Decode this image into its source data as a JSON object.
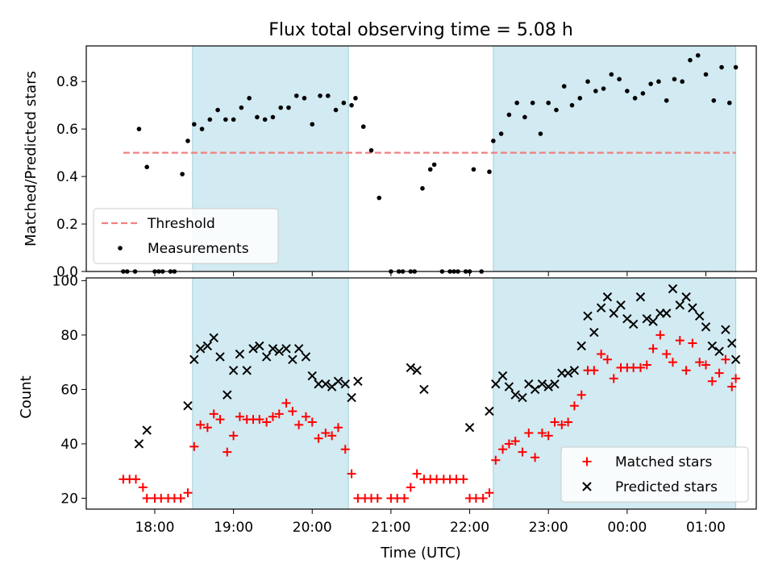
{
  "chart_data": [
    {
      "type": "scatter",
      "title": "Flux total observing time = 5.08 h",
      "xlabel": "",
      "ylabel": "Matched/Predicted stars",
      "xlim": [
        17.13,
        25.64
      ],
      "ylim": [
        0,
        0.95
      ],
      "yticks": [
        0.0,
        0.2,
        0.4,
        0.6,
        0.8
      ],
      "ytick_labels": [
        "0.0",
        "0.2",
        "0.4",
        "0.6",
        "0.8"
      ],
      "shaded_intervals": [
        [
          18.48,
          20.46
        ],
        [
          22.3,
          25.38
        ]
      ],
      "shade_color": "#add8e6",
      "threshold": {
        "name": "Threshold",
        "value": 0.5,
        "x_range": [
          17.6,
          25.38
        ],
        "color": "#f08080"
      },
      "series": [
        {
          "name": "Measurements",
          "color": "#000000",
          "x": [
            17.6,
            17.65,
            17.75,
            17.8,
            17.9,
            18.0,
            18.05,
            18.1,
            18.2,
            18.25,
            18.35,
            18.42,
            18.5,
            18.6,
            18.7,
            18.8,
            18.9,
            19.0,
            19.1,
            19.2,
            19.3,
            19.4,
            19.5,
            19.6,
            19.7,
            19.8,
            19.9,
            20.0,
            20.1,
            20.2,
            20.3,
            20.4,
            20.5,
            20.55,
            20.65,
            20.75,
            20.85,
            21.0,
            21.1,
            21.15,
            21.25,
            21.3,
            21.4,
            21.5,
            21.55,
            21.65,
            21.75,
            21.8,
            21.85,
            21.95,
            22.0,
            22.05,
            22.15,
            22.25,
            22.3,
            22.4,
            22.5,
            22.6,
            22.7,
            22.8,
            22.9,
            23.0,
            23.1,
            23.2,
            23.3,
            23.4,
            23.5,
            23.6,
            23.7,
            23.8,
            23.9,
            24.0,
            24.1,
            24.2,
            24.3,
            24.4,
            24.5,
            24.6,
            24.7,
            24.8,
            24.9,
            25.0,
            25.1,
            25.2,
            25.3,
            25.38
          ],
          "y": [
            0.0,
            0.0,
            0.0,
            0.6,
            0.44,
            0.0,
            0.0,
            0.0,
            0.0,
            0.0,
            0.41,
            0.55,
            0.62,
            0.6,
            0.64,
            0.68,
            0.64,
            0.64,
            0.69,
            0.73,
            0.65,
            0.64,
            0.65,
            0.69,
            0.69,
            0.74,
            0.73,
            0.62,
            0.74,
            0.74,
            0.68,
            0.71,
            0.7,
            0.73,
            0.61,
            0.51,
            0.31,
            0.0,
            0.0,
            0.0,
            0.0,
            0.0,
            0.35,
            0.43,
            0.45,
            0.0,
            0.0,
            0.0,
            0.0,
            0.0,
            0.0,
            0.43,
            0.0,
            0.42,
            0.55,
            0.58,
            0.66,
            0.71,
            0.65,
            0.71,
            0.58,
            0.71,
            0.68,
            0.78,
            0.7,
            0.73,
            0.8,
            0.76,
            0.77,
            0.83,
            0.81,
            0.76,
            0.73,
            0.75,
            0.79,
            0.8,
            0.72,
            0.81,
            0.8,
            0.89,
            0.91,
            0.83,
            0.72,
            0.86,
            0.71,
            0.86
          ]
        }
      ],
      "legend": {
        "position": "lower-left",
        "entries": [
          "Threshold",
          "Measurements"
        ]
      }
    },
    {
      "type": "scatter",
      "title": "",
      "xlabel": "Time (UTC)",
      "ylabel": "Count",
      "xlim": [
        17.13,
        25.64
      ],
      "ylim": [
        16,
        101
      ],
      "yticks": [
        20,
        40,
        60,
        80,
        100
      ],
      "ytick_labels": [
        "20",
        "40",
        "60",
        "80",
        "100"
      ],
      "xticks": [
        18,
        19,
        20,
        21,
        22,
        23,
        24,
        25
      ],
      "xtick_labels": [
        "18:00",
        "19:00",
        "20:00",
        "21:00",
        "22:00",
        "23:00",
        "00:00",
        "01:00"
      ],
      "shaded_intervals": [
        [
          18.48,
          20.46
        ],
        [
          22.3,
          25.38
        ]
      ],
      "shade_color": "#add8e6",
      "series": [
        {
          "name": "Matched stars",
          "marker": "plus",
          "color": "#ff0000",
          "x": [
            17.6,
            17.68,
            17.76,
            17.85,
            17.9,
            18.0,
            18.08,
            18.17,
            18.25,
            18.33,
            18.42,
            18.5,
            18.58,
            18.67,
            18.75,
            18.83,
            18.92,
            19.0,
            19.08,
            19.17,
            19.25,
            19.33,
            19.42,
            19.5,
            19.58,
            19.67,
            19.75,
            19.83,
            19.92,
            20.0,
            20.08,
            20.17,
            20.25,
            20.33,
            20.42,
            20.5,
            20.58,
            20.67,
            20.75,
            20.83,
            21.0,
            21.08,
            21.17,
            21.25,
            21.33,
            21.42,
            21.5,
            21.58,
            21.67,
            21.75,
            21.83,
            21.92,
            22.0,
            22.08,
            22.17,
            22.25,
            22.33,
            22.42,
            22.5,
            22.58,
            22.67,
            22.75,
            22.83,
            22.92,
            23.0,
            23.08,
            23.17,
            23.25,
            23.33,
            23.42,
            23.5,
            23.58,
            23.67,
            23.75,
            23.83,
            23.92,
            24.0,
            24.08,
            24.17,
            24.25,
            24.33,
            24.42,
            24.5,
            24.58,
            24.67,
            24.75,
            24.83,
            24.92,
            25.0,
            25.08,
            25.17,
            25.25,
            25.33,
            25.38
          ],
          "y": [
            27,
            27,
            27,
            24,
            20,
            20,
            20,
            20,
            20,
            20,
            22,
            39,
            47,
            46,
            51,
            49,
            37,
            43,
            50,
            49,
            49,
            49,
            48,
            50,
            51,
            55,
            52,
            47,
            50,
            48,
            42,
            44,
            43,
            46,
            38,
            29,
            20,
            20,
            20,
            20,
            20,
            20,
            20,
            24,
            29,
            27,
            27,
            27,
            27,
            27,
            27,
            27,
            20,
            20,
            20,
            22,
            34,
            38,
            40,
            41,
            37,
            44,
            35,
            44,
            43,
            48,
            47,
            48,
            54,
            58,
            67,
            67,
            73,
            71,
            64,
            68,
            68,
            68,
            68,
            69,
            75,
            80,
            73,
            70,
            78,
            67,
            77,
            70,
            69,
            63,
            66,
            71,
            61,
            64
          ]
        },
        {
          "name": "Predicted stars",
          "marker": "x",
          "color": "#000000",
          "x": [
            17.8,
            17.9,
            18.42,
            18.5,
            18.58,
            18.67,
            18.75,
            18.83,
            18.92,
            19.0,
            19.08,
            19.17,
            19.25,
            19.33,
            19.42,
            19.5,
            19.58,
            19.67,
            19.75,
            19.83,
            19.92,
            20.0,
            20.08,
            20.17,
            20.25,
            20.33,
            20.42,
            20.5,
            20.58,
            21.25,
            21.33,
            21.42,
            22.0,
            22.25,
            22.33,
            22.42,
            22.5,
            22.58,
            22.67,
            22.75,
            22.83,
            22.92,
            23.0,
            23.08,
            23.17,
            23.25,
            23.33,
            23.42,
            23.5,
            23.58,
            23.67,
            23.75,
            23.83,
            23.92,
            24.0,
            24.08,
            24.17,
            24.25,
            24.33,
            24.42,
            24.5,
            24.58,
            24.67,
            24.75,
            24.83,
            24.92,
            25.0,
            25.08,
            25.17,
            25.25,
            25.33,
            25.38
          ],
          "y": [
            40,
            45,
            54,
            71,
            75,
            76,
            79,
            72,
            58,
            67,
            73,
            67,
            75,
            76,
            72,
            75,
            74,
            75,
            71,
            75,
            72,
            65,
            62,
            62,
            61,
            63,
            62,
            57,
            63,
            68,
            67,
            60,
            46,
            52,
            62,
            65,
            61,
            58,
            57,
            62,
            60,
            62,
            61,
            62,
            66,
            66,
            67,
            76,
            87,
            81,
            90,
            94,
            88,
            91,
            86,
            84,
            94,
            86,
            85,
            88,
            88,
            97,
            91,
            94,
            90,
            87,
            83,
            76,
            74,
            82,
            77,
            71
          ]
        }
      ],
      "legend": {
        "position": "lower-right",
        "entries": [
          "Matched stars",
          "Predicted stars"
        ]
      }
    }
  ]
}
